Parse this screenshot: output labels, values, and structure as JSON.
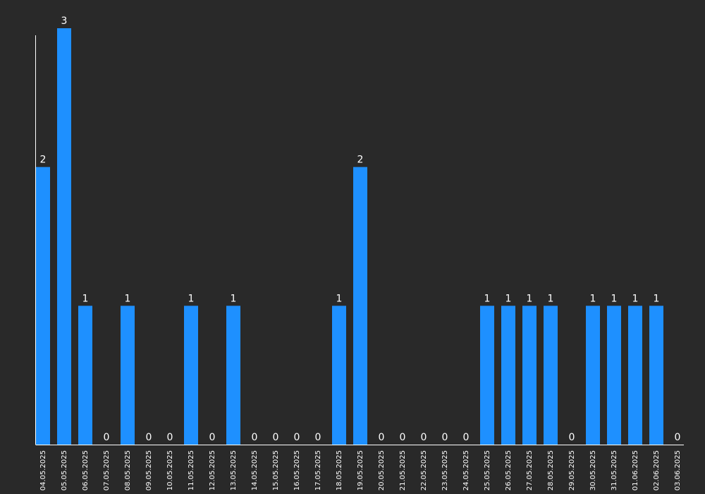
{
  "chart_data": {
    "type": "bar",
    "categories": [
      "04.05.2025",
      "05.05.2025",
      "06.05.2025",
      "07.05.2025",
      "08.05.2025",
      "09.05.2025",
      "10.05.2025",
      "11.05.2025",
      "12.05.2025",
      "13.05.2025",
      "14.05.2025",
      "15.05.2025",
      "16.05.2025",
      "17.05.2025",
      "18.05.2025",
      "19.05.2025",
      "20.05.2025",
      "21.05.2025",
      "22.05.2025",
      "23.05.2025",
      "24.05.2025",
      "25.05.2025",
      "26.05.2025",
      "27.05.2025",
      "28.05.2025",
      "29.05.2025",
      "30.05.2025",
      "31.05.2025",
      "01.06.2025",
      "02.06.2025",
      "03.06.2025"
    ],
    "values": [
      2,
      3,
      1,
      0,
      1,
      0,
      0,
      1,
      0,
      1,
      0,
      0,
      0,
      0,
      1,
      2,
      0,
      0,
      0,
      0,
      0,
      1,
      1,
      1,
      1,
      0,
      1,
      1,
      1,
      1,
      0
    ],
    "title": "",
    "xlabel": "",
    "ylabel": "",
    "ylim": [
      0,
      3
    ],
    "grid": false,
    "data_labels": true,
    "colors": {
      "bar": "#1e90ff",
      "background": "#292929",
      "text": "#ffffff",
      "axis": "#ffffff"
    }
  }
}
